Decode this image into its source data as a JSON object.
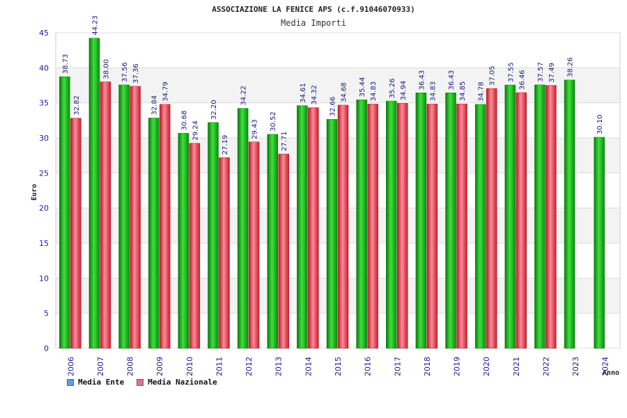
{
  "colors": {
    "ente_bar": "#1db31d",
    "ente_dark": "#0a7a0a",
    "naz_bar": "#e84a5a",
    "naz_dark": "#b01a2a",
    "legend_ente": "#5aa0e6",
    "legend_naz": "#e070a0"
  },
  "chart_data": {
    "type": "bar",
    "title": "ASSOCIAZIONE LA FENICE APS (c.f.91046070933)",
    "subtitle": "Media Importi",
    "xlabel": "Anno",
    "ylabel": "Euro",
    "ylim": [
      0,
      45
    ],
    "yticks": [
      0,
      5,
      10,
      15,
      20,
      25,
      30,
      35,
      40,
      45
    ],
    "grid": true,
    "legend_position": "bottom-left",
    "categories": [
      "2006",
      "2007",
      "2008",
      "2009",
      "2010",
      "2011",
      "2012",
      "2013",
      "2014",
      "2015",
      "2016",
      "2017",
      "2018",
      "2019",
      "2020",
      "2021",
      "2022",
      "2023",
      "2024"
    ],
    "series": [
      {
        "name": "Media Ente",
        "values": [
          38.73,
          44.23,
          37.56,
          32.84,
          30.68,
          32.2,
          34.22,
          30.52,
          34.61,
          32.66,
          35.44,
          35.26,
          36.43,
          36.43,
          34.78,
          37.55,
          37.57,
          38.26,
          30.1
        ],
        "labels": [
          "38.73",
          "44.23",
          "37.56",
          "32.84",
          "30.68",
          "32.20",
          "34.22",
          "30.52",
          "34.61",
          "32.66",
          "35.44",
          "35.26",
          "36.43",
          "36.43",
          "34.78",
          "37.55",
          "37.57",
          "38.26",
          "30.10"
        ]
      },
      {
        "name": "Media Nazionale",
        "values": [
          32.82,
          38.0,
          37.36,
          34.79,
          29.24,
          27.19,
          29.43,
          27.71,
          34.32,
          34.68,
          34.83,
          34.94,
          34.83,
          34.85,
          37.05,
          36.46,
          37.49,
          null,
          null
        ],
        "labels": [
          "32.82",
          "38.00",
          "37.36",
          "34.79",
          "29.24",
          "27.19",
          "29.43",
          "27.71",
          "34.32",
          "34.68",
          "34.83",
          "34.94",
          "34.83",
          "34.85",
          "37.05",
          "36.46",
          "37.49",
          null,
          null
        ]
      }
    ]
  }
}
